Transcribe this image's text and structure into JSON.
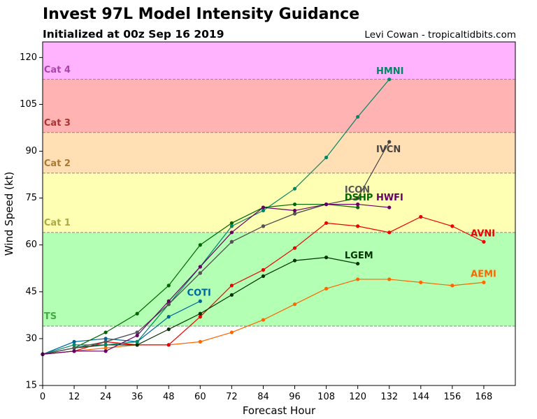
{
  "header": {
    "title": "Invest 97L Model Intensity Guidance",
    "subtitle": "Initialized at 00z Sep 16 2019",
    "credit": "Levi Cowan - tropicaltidbits.com"
  },
  "chart_data": {
    "type": "line",
    "xlabel": "Forecast Hour",
    "ylabel": "Wind Speed (kt)",
    "xlim": [
      0,
      180
    ],
    "ylim": [
      15,
      125
    ],
    "xticks": [
      0,
      12,
      24,
      36,
      48,
      60,
      72,
      84,
      96,
      108,
      120,
      132,
      144,
      156,
      168
    ],
    "yticks": [
      15,
      30,
      45,
      60,
      75,
      90,
      105,
      120
    ],
    "categories": [
      {
        "label": "TS",
        "from": 34,
        "to": 64,
        "color": "#b3ffb3",
        "label_color": "#44aa44",
        "label_y": 37
      },
      {
        "label": "Cat 1",
        "from": 64,
        "to": 83,
        "color": "#ffffb3",
        "label_color": "#aaaa44",
        "label_y": 67
      },
      {
        "label": "Cat 2",
        "from": 83,
        "to": 96,
        "color": "#ffdfb3",
        "label_color": "#aa7a33",
        "label_y": 86
      },
      {
        "label": "Cat 3",
        "from": 96,
        "to": 113,
        "color": "#ffb3b3",
        "label_color": "#aa3333",
        "label_y": 99
      },
      {
        "label": "Cat 4",
        "from": 113,
        "to": 125,
        "color": "#ffb3ff",
        "label_color": "#aa44aa",
        "label_y": 116
      }
    ],
    "series": [
      {
        "name": "AEMI",
        "color": "#ff6600",
        "label_x": 163,
        "label_y": 50.5,
        "x": [
          0,
          12,
          24,
          36,
          48,
          60,
          72,
          84,
          96,
          108,
          120,
          132,
          144,
          156,
          168
        ],
        "y": [
          25,
          26,
          27,
          28,
          28,
          29,
          32,
          36,
          41,
          46,
          49,
          49,
          48,
          47,
          48
        ]
      },
      {
        "name": "AVNI",
        "color": "#ee0000",
        "label_x": 163,
        "label_y": 63.5,
        "x": [
          0,
          12,
          24,
          36,
          48,
          60,
          72,
          84,
          96,
          108,
          120,
          132,
          144,
          156,
          168
        ],
        "y": [
          25,
          26,
          29,
          28,
          28,
          37,
          47,
          52,
          59,
          67,
          66,
          64,
          69,
          66,
          61
        ]
      },
      {
        "name": "LGEM",
        "color": "#003300",
        "label_x": 115,
        "label_y": 56.5,
        "x": [
          0,
          12,
          24,
          36,
          48,
          60,
          72,
          84,
          96,
          108,
          120
        ],
        "y": [
          25,
          27,
          28,
          28,
          33,
          38,
          44,
          50,
          55,
          56,
          54
        ]
      },
      {
        "name": "COTI",
        "color": "#006699",
        "label_x": 55,
        "label_y": 44.5,
        "x": [
          0,
          12,
          24,
          36,
          48,
          60
        ],
        "y": [
          25,
          29,
          30,
          29,
          37,
          42
        ]
      },
      {
        "name": "DSHP",
        "color": "#006600",
        "label_x": 115,
        "label_y": 75,
        "x": [
          0,
          12,
          24,
          36,
          48,
          60,
          72,
          84,
          96,
          108,
          120
        ],
        "y": [
          25,
          27,
          32,
          38,
          47,
          60,
          67,
          72,
          73,
          73,
          72
        ]
      },
      {
        "name": "HMNI",
        "color": "#008866",
        "label_x": 127,
        "label_y": 115.5,
        "x": [
          0,
          12,
          24,
          36,
          48,
          60,
          72,
          84,
          96,
          108,
          120,
          132
        ],
        "y": [
          25,
          28,
          28,
          29,
          41,
          53,
          66,
          71,
          78,
          88,
          101,
          113
        ]
      },
      {
        "name": "IVCN",
        "color": "#444444",
        "label_x": 127,
        "label_y": 90.5,
        "x": [
          0,
          12,
          24,
          36,
          48,
          60,
          72,
          84,
          96,
          108,
          120,
          132
        ],
        "y": [
          25,
          27,
          29,
          32,
          41,
          51,
          61,
          66,
          70,
          73,
          75,
          93
        ]
      },
      {
        "name": "ICON",
        "color": "#555555",
        "label_x": 115,
        "label_y": 77.5,
        "x": [
          0,
          12,
          24,
          36,
          48,
          60,
          72,
          84,
          96,
          108,
          120
        ],
        "y": [
          25,
          27,
          29,
          32,
          41,
          51,
          61,
          66,
          70,
          73,
          73
        ]
      },
      {
        "name": "HWFI",
        "color": "#660066",
        "label_x": 127,
        "label_y": 75,
        "x": [
          0,
          12,
          24,
          36,
          48,
          60,
          72,
          84,
          96,
          108,
          120,
          132
        ],
        "y": [
          25,
          26,
          26,
          31,
          42,
          53,
          64,
          72,
          71,
          73,
          73,
          72
        ]
      }
    ],
    "grid": false,
    "legend": "none"
  }
}
